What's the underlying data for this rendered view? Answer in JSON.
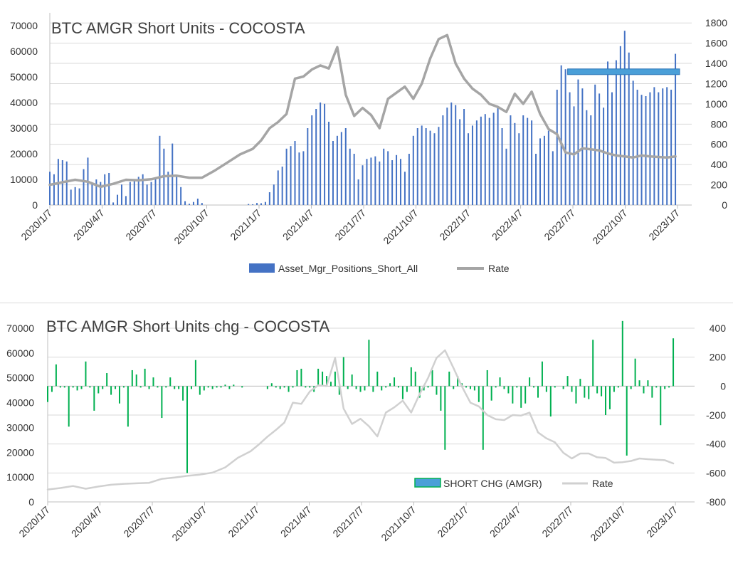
{
  "chart_data": [
    {
      "type": "bar",
      "title": "BTC AMGR Short Units - COCOSTA",
      "xlabel": "",
      "ylabel": "",
      "x_ticks": [
        "2020/1/7",
        "2020/4/7",
        "2020/7/7",
        "2020/10/7",
        "2021/1/7",
        "2021/4/7",
        "2021/7/7",
        "2021/10/7",
        "2022/1/7",
        "2022/4/7",
        "2022/7/7",
        "2022/10/7",
        "2023/1/7"
      ],
      "ylim": [
        0,
        75000
      ],
      "y_ticks": [
        0,
        10000,
        20000,
        30000,
        40000,
        50000,
        60000,
        70000
      ],
      "y2lim": [
        0,
        1900
      ],
      "y2_ticks": [
        0,
        200,
        400,
        600,
        800,
        1000,
        1200,
        1400,
        1600,
        1800
      ],
      "legend": [
        "Asset_Mgr_Positions_Short_All",
        "Rate"
      ],
      "series": [
        {
          "name": "Asset_Mgr_Positions_Short_All",
          "axis": "left",
          "color": "#4472c4",
          "x": [
            0,
            2,
            4,
            6,
            8,
            10,
            12,
            14,
            16,
            18,
            20,
            22,
            24,
            26,
            28,
            30,
            32,
            34,
            36,
            38,
            40,
            42,
            44,
            46,
            48,
            50,
            52,
            54,
            56,
            58,
            60,
            62,
            64,
            66,
            68,
            70,
            72,
            74,
            76,
            78,
            80,
            82,
            84,
            86,
            88,
            90,
            92,
            94,
            96,
            98,
            100,
            102,
            104,
            106,
            108,
            110,
            112,
            114,
            116,
            118,
            120,
            122,
            124,
            126,
            128,
            130,
            132,
            134,
            136,
            138,
            140,
            142,
            144,
            146,
            148,
            150,
            152,
            154,
            156,
            158,
            160,
            162,
            164,
            166
          ],
          "values": [
            13000,
            12000,
            18000,
            17500,
            17000,
            6000,
            7000,
            6500,
            14000,
            18500,
            8000,
            10000,
            9000,
            12000,
            12500,
            1000,
            4000,
            8000,
            3500,
            9000,
            10000,
            11000,
            12000,
            8000,
            9000,
            10000,
            27000,
            22000,
            13000,
            24000,
            11000,
            7000,
            1500,
            500,
            1200,
            2500,
            800,
            0,
            0,
            0,
            0,
            0,
            0,
            0,
            0,
            0,
            0,
            400,
            300,
            800,
            700,
            1200,
            5000,
            8000,
            13500,
            15000,
            22000,
            23000,
            25000,
            20500,
            21000,
            30000,
            35000,
            37500,
            40000,
            39500,
            32500,
            25000,
            27000,
            28500,
            30000,
            22000,
            20000,
            10000,
            15500,
            18000,
            18500,
            19000,
            17000,
            22000,
            21000,
            17500,
            19500,
            18000
          ]
        },
        {
          "name": "Asset_Mgr_Positions_Short_All (cont.)",
          "axis": "left",
          "color": "#4472c4",
          "x": [
            168,
            170,
            172,
            174,
            176,
            178,
            180,
            182,
            184,
            186,
            188,
            190,
            192,
            194,
            196,
            198,
            200,
            202,
            204,
            206,
            208,
            210,
            212,
            214,
            216,
            218,
            220,
            222,
            224,
            226,
            228,
            230,
            232,
            234,
            236,
            238,
            240,
            242,
            244,
            246,
            248,
            250,
            252,
            254,
            256,
            258,
            260,
            262,
            264,
            266,
            268,
            270,
            272,
            274,
            276,
            278,
            280,
            282,
            284,
            286,
            288,
            290,
            292,
            294,
            296
          ],
          "values": [
            13000,
            20000,
            27000,
            30000,
            31000,
            30000,
            29000,
            28000,
            30500,
            35000,
            38000,
            40000,
            39000,
            33500,
            37500,
            28000,
            31000,
            33000,
            34500,
            35500,
            34000,
            36000,
            38000,
            30000,
            22000,
            35000,
            32000,
            28000,
            35000,
            34000,
            33000,
            20000,
            26000,
            27000,
            29000,
            21000,
            45000,
            54500,
            53000,
            44000,
            38500,
            49000,
            45500,
            37000,
            35000,
            47000,
            43500,
            38000,
            56000,
            44000,
            56500,
            62000,
            68000,
            59500,
            48500,
            45000,
            43000,
            42500,
            44000,
            46000,
            44000,
            45500,
            46000,
            45000,
            59000
          ]
        },
        {
          "name": "Rate",
          "axis": "right",
          "color": "#a5a5a5",
          "x": [
            0,
            6,
            12,
            18,
            24,
            30,
            36,
            42,
            48,
            54,
            60,
            66,
            72,
            78,
            84,
            90,
            96,
            100,
            104,
            108,
            112,
            116,
            120,
            124,
            128,
            132,
            136,
            140,
            144,
            148,
            152,
            156,
            160,
            164,
            168,
            172,
            176,
            180,
            184,
            188,
            192,
            196,
            200,
            204,
            208,
            212,
            216,
            220,
            224,
            228,
            232,
            236,
            240,
            244,
            248,
            252,
            256,
            260,
            264,
            268,
            272,
            276,
            280,
            284,
            288,
            292,
            296
          ],
          "values": [
            200,
            225,
            250,
            230,
            180,
            210,
            250,
            245,
            255,
            285,
            290,
            270,
            270,
            340,
            420,
            500,
            555,
            640,
            760,
            820,
            900,
            1250,
            1270,
            1340,
            1380,
            1350,
            1560,
            1090,
            880,
            960,
            890,
            760,
            1050,
            1110,
            1170,
            1050,
            1200,
            1450,
            1640,
            1680,
            1400,
            1250,
            1150,
            1090,
            1000,
            970,
            920,
            1100,
            1000,
            1120,
            900,
            750,
            700,
            520,
            500,
            560,
            550,
            540,
            510,
            490,
            480,
            470,
            490,
            480,
            475,
            470,
            480
          ]
        },
        {
          "name": "highlight-band",
          "axis": "left",
          "color": "#4a9fd8",
          "x": [
            245,
            298
          ],
          "values": [
            52000,
            52000
          ]
        }
      ]
    },
    {
      "type": "bar",
      "title": "BTC AMGR Short Units chg - COCOSTA",
      "xlabel": "",
      "ylabel": "",
      "x_ticks": [
        "2020/1/7",
        "2020/4/7",
        "2020/7/7",
        "2020/10/7",
        "2021/1/7",
        "2021/4/7",
        "2021/7/7",
        "2021/10/7",
        "2022/1/7",
        "2022/4/7",
        "2022/7/7",
        "2022/10/7",
        "2023/1/7"
      ],
      "ylim": [
        0,
        70000
      ],
      "y_ticks": [
        0,
        10000,
        20000,
        30000,
        40000,
        50000,
        60000,
        70000
      ],
      "y2lim": [
        -800,
        400
      ],
      "y2_ticks": [
        -800,
        -600,
        -400,
        -200,
        0,
        200,
        400
      ],
      "legend": [
        "SHORT CHG (AMGR)",
        "Rate"
      ],
      "series": [
        {
          "name": "SHORT CHG (AMGR)",
          "axis": "right",
          "color": "#00b050",
          "x": [
            0,
            2,
            4,
            6,
            8,
            10,
            12,
            14,
            16,
            18,
            20,
            22,
            24,
            26,
            28,
            30,
            32,
            34,
            36,
            38,
            40,
            42,
            44,
            46,
            48,
            50,
            52,
            54,
            56,
            58,
            60,
            62,
            64,
            66,
            68,
            70,
            72,
            74,
            76,
            78,
            80,
            82,
            84,
            86,
            88,
            90,
            92,
            94,
            96,
            98,
            100,
            102,
            104,
            106,
            108,
            110,
            112,
            114,
            116,
            118,
            120,
            122,
            124,
            126,
            128,
            130,
            132,
            134,
            136,
            138,
            140,
            142,
            144,
            146,
            148,
            150,
            152,
            154,
            156,
            158,
            160,
            162,
            164,
            166
          ],
          "values": [
            -110,
            -40,
            150,
            -10,
            -10,
            -280,
            -10,
            -30,
            -20,
            170,
            -10,
            -170,
            -50,
            -20,
            90,
            -60,
            -20,
            -120,
            -10,
            -280,
            110,
            80,
            -10,
            120,
            -20,
            60,
            -10,
            -220,
            -10,
            60,
            -20,
            -20,
            -100,
            -600,
            -20,
            180,
            -60,
            -30,
            -10,
            -20,
            -10,
            -10,
            10,
            -20,
            10,
            0,
            -10,
            0,
            0,
            0,
            0,
            0,
            -20,
            20,
            -10,
            -20,
            -10,
            -40,
            -10,
            110,
            120,
            -10,
            -10,
            -40,
            120,
            100,
            70,
            30,
            100,
            -60,
            200,
            -20,
            80,
            -20,
            -40,
            -30,
            320,
            -40,
            100,
            -30,
            -10,
            20,
            60,
            -10
          ]
        },
        {
          "name": "SHORT CHG (AMGR) (cont.)",
          "axis": "right",
          "color": "#00b050",
          "x": [
            168,
            170,
            172,
            174,
            176,
            178,
            180,
            182,
            184,
            186,
            188,
            190,
            192,
            194,
            196,
            198,
            200,
            202,
            204,
            206,
            208,
            210,
            212,
            214,
            216,
            218,
            220,
            222,
            224,
            226,
            228,
            230,
            232,
            234,
            236,
            238,
            240,
            242,
            244,
            246,
            248,
            250,
            252,
            254,
            256,
            258,
            260,
            262,
            264,
            266,
            268,
            270,
            272,
            274,
            276,
            278,
            280,
            282,
            284,
            286,
            288,
            290,
            292,
            294,
            296
          ],
          "values": [
            -90,
            -40,
            130,
            100,
            -80,
            -30,
            -10,
            110,
            -60,
            -170,
            -440,
            100,
            -20,
            70,
            20,
            -10,
            -20,
            -30,
            -110,
            -440,
            110,
            -100,
            -10,
            60,
            -20,
            -50,
            -120,
            -10,
            -150,
            -120,
            60,
            -10,
            -80,
            170,
            -40,
            -210,
            -10,
            0,
            -20,
            70,
            -40,
            -120,
            50,
            -80,
            -90,
            320,
            -50,
            -70,
            -200,
            -160,
            -40,
            -10,
            450,
            -480,
            -20,
            190,
            40,
            -50,
            40,
            -80,
            -10,
            -270,
            -20,
            -10,
            330
          ]
        },
        {
          "name": "Rate",
          "axis": "left",
          "color": "#d0d0d0",
          "x": [
            0,
            6,
            12,
            18,
            24,
            30,
            36,
            42,
            48,
            54,
            60,
            66,
            72,
            78,
            84,
            90,
            96,
            100,
            104,
            108,
            112,
            116,
            120,
            124,
            128,
            132,
            136,
            140,
            144,
            148,
            152,
            156,
            160,
            164,
            168,
            172,
            176,
            180,
            184,
            188,
            192,
            196,
            200,
            204,
            208,
            212,
            216,
            220,
            224,
            228,
            232,
            236,
            240,
            244,
            248,
            252,
            256,
            260,
            264,
            268,
            272,
            276,
            280,
            284,
            288,
            292,
            296
          ],
          "values": [
            5000,
            5600,
            6400,
            5300,
            6200,
            6900,
            7300,
            7500,
            7700,
            9300,
            9800,
            10500,
            11000,
            11800,
            13900,
            17800,
            20400,
            23200,
            26300,
            29000,
            32000,
            40000,
            39500,
            44500,
            47000,
            46700,
            58000,
            37600,
            31400,
            33500,
            30500,
            26400,
            36000,
            38100,
            40800,
            36000,
            43500,
            50000,
            58000,
            61100,
            54000,
            46500,
            40000,
            38500,
            35000,
            33300,
            33000,
            35000,
            34800,
            36000,
            28000,
            25600,
            24000,
            19800,
            17500,
            19500,
            19500,
            18000,
            17700,
            15800,
            16000,
            16500,
            17500,
            17200,
            17000,
            16800,
            15500
          ]
        }
      ]
    }
  ]
}
